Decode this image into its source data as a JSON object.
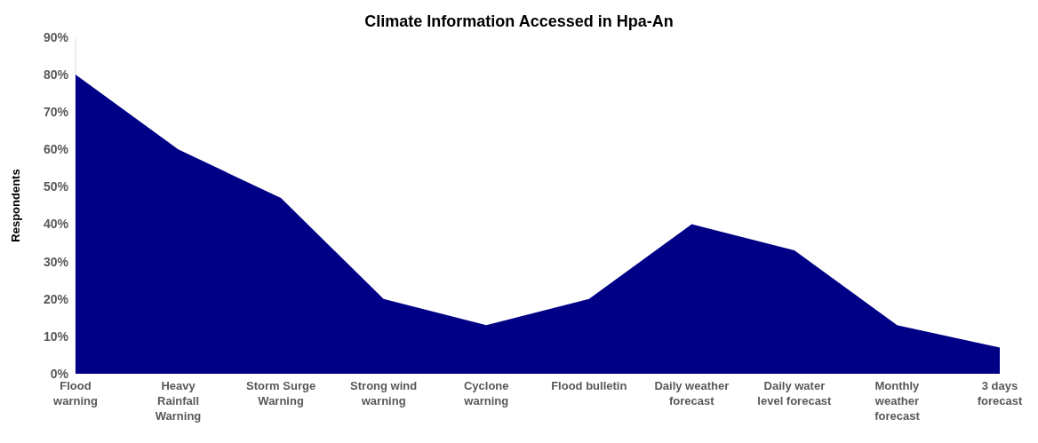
{
  "chart_data": {
    "type": "area",
    "title": "Climate Information Accessed in Hpa-An",
    "ylabel": "Respondents",
    "categories": [
      "Flood warning",
      "Heavy Rainfall Warning",
      "Storm Surge Warning",
      "Strong wind warning",
      "Cyclone warning",
      "Flood bulletin",
      "Daily weather forecast",
      "Daily water level forecast",
      "Monthly weather forecast",
      "3 days forecast"
    ],
    "series": [
      {
        "color": "#000087",
        "values": [
          80,
          60,
          47,
          20,
          13,
          20,
          40,
          33,
          13,
          7
        ]
      }
    ],
    "ylim": [
      0,
      90
    ],
    "yticks": [
      {
        "value": 0,
        "label": "0%"
      },
      {
        "value": 10,
        "label": "10%"
      },
      {
        "value": 20,
        "label": "20%"
      },
      {
        "value": 30,
        "label": "30%"
      },
      {
        "value": 40,
        "label": "40%"
      },
      {
        "value": 50,
        "label": "50%"
      },
      {
        "value": 60,
        "label": "60%"
      },
      {
        "value": 70,
        "label": "70%"
      },
      {
        "value": 80,
        "label": "80%"
      },
      {
        "value": 90,
        "label": "90%"
      }
    ],
    "grid": false
  }
}
